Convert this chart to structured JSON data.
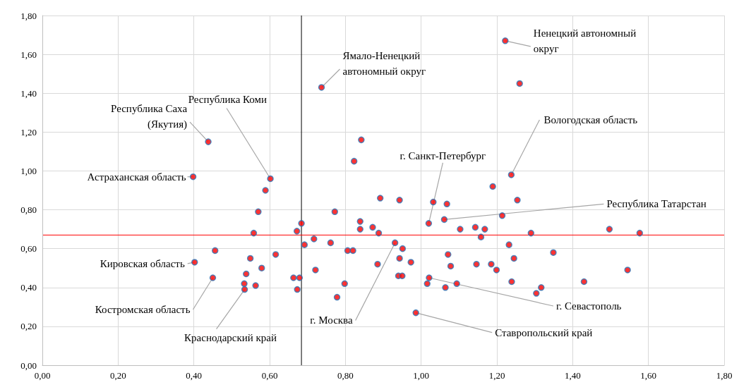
{
  "chart_data": {
    "type": "scatter",
    "marker": "circle",
    "grid": true,
    "xlim": [
      0,
      1.8
    ],
    "ylim": [
      0,
      1.8
    ],
    "xticks": [
      {
        "value": 0,
        "label": "0,00"
      },
      {
        "value": 0.2,
        "label": "0,20"
      },
      {
        "value": 0.4,
        "label": "0,40"
      },
      {
        "value": 0.6,
        "label": "0,60"
      },
      {
        "value": 0.8,
        "label": "0,80"
      },
      {
        "value": 1,
        "label": "1,00"
      },
      {
        "value": 1.2,
        "label": "1,20"
      },
      {
        "value": 1.4,
        "label": "1,40"
      },
      {
        "value": 1.6,
        "label": "1,60"
      },
      {
        "value": 1.8,
        "label": "1,80"
      }
    ],
    "yticks": [
      {
        "value": 0,
        "label": "0,00"
      },
      {
        "value": 0.2,
        "label": "0,20"
      },
      {
        "value": 0.4,
        "label": "0,40"
      },
      {
        "value": 0.6,
        "label": "0,60"
      },
      {
        "value": 0.8,
        "label": "0,80"
      },
      {
        "value": 1,
        "label": "1,00"
      },
      {
        "value": 1.2,
        "label": "1,20"
      },
      {
        "value": 1.4,
        "label": "1,40"
      },
      {
        "value": 1.6,
        "label": "1,60"
      },
      {
        "value": 1.8,
        "label": "1,80"
      }
    ],
    "ref_lines": [
      {
        "axis": "x",
        "value": 0.684,
        "color": "#000000"
      },
      {
        "axis": "y",
        "value": 0.67,
        "color": "#ff0000"
      }
    ],
    "series": [
      {
        "color": "#ff0000",
        "x": [
          0.737,
          0.438,
          0.842,
          0.823,
          0.398,
          0.602,
          0.589,
          0.57,
          0.772,
          0.839,
          0.839,
          0.684,
          0.672,
          0.558,
          0.717,
          0.692,
          0.761,
          0.806,
          0.82,
          0.456,
          0.402,
          0.549,
          0.616,
          0.579,
          0.538,
          0.45,
          0.721,
          0.533,
          0.563,
          0.534,
          0.663,
          0.679,
          0.673,
          0.798,
          0.778,
          1.222,
          1.26,
          1.238,
          1.189,
          0.892,
          0.943,
          1.032,
          1.068,
          1.254,
          1.214,
          1.061,
          1.02,
          0.872,
          0.888,
          1.103,
          1.143,
          1.168,
          1.158,
          1.29,
          0.931,
          0.951,
          1.232,
          0.943,
          0.973,
          0.885,
          1.071,
          1.078,
          1.146,
          1.185,
          1.199,
          1.245,
          0.94,
          0.95,
          1.021,
          1.016,
          1.064,
          1.094,
          1.239,
          1.304,
          1.317,
          0.986,
          1.497,
          1.577,
          1.349,
          1.545,
          1.43
        ],
        "values": [
          1.43,
          1.15,
          1.16,
          1.05,
          0.97,
          0.96,
          0.9,
          0.79,
          0.79,
          0.74,
          0.7,
          0.73,
          0.69,
          0.68,
          0.65,
          0.62,
          0.63,
          0.59,
          0.59,
          0.59,
          0.53,
          0.55,
          0.57,
          0.5,
          0.47,
          0.45,
          0.49,
          0.42,
          0.41,
          0.39,
          0.45,
          0.45,
          0.39,
          0.42,
          0.35,
          1.67,
          1.45,
          0.98,
          0.92,
          0.86,
          0.85,
          0.84,
          0.83,
          0.85,
          0.77,
          0.75,
          0.73,
          0.71,
          0.68,
          0.7,
          0.71,
          0.7,
          0.66,
          0.68,
          0.63,
          0.6,
          0.62,
          0.55,
          0.53,
          0.52,
          0.57,
          0.51,
          0.52,
          0.52,
          0.49,
          0.55,
          0.46,
          0.46,
          0.45,
          0.42,
          0.4,
          0.42,
          0.43,
          0.37,
          0.4,
          0.27,
          0.7,
          0.68,
          0.58,
          0.49,
          0.43
        ]
      }
    ],
    "annotations": [
      {
        "text": "Ненецкий автономный\nокруг",
        "x": 1.222,
        "y": 1.67
      },
      {
        "text": "Ямало-Ненецкий\nавтономный округ",
        "x": 0.737,
        "y": 1.43
      },
      {
        "text": "Республика Саха\n(Якутия)",
        "x": 0.438,
        "y": 1.15
      },
      {
        "text": "Республика Коми",
        "x": 0.602,
        "y": 0.96
      },
      {
        "text": "Вологодская область",
        "x": 1.238,
        "y": 0.98
      },
      {
        "text": "г. Санкт-Петербург",
        "x": 1.02,
        "y": 0.73
      },
      {
        "text": "Астраханская область",
        "x": 0.398,
        "y": 0.97
      },
      {
        "text": "Республика Татарстан",
        "x": 1.061,
        "y": 0.75
      },
      {
        "text": "Кировская область",
        "x": 0.402,
        "y": 0.53
      },
      {
        "text": "Костромская область",
        "x": 0.45,
        "y": 0.45
      },
      {
        "text": "Краснодарский край",
        "x": 0.534,
        "y": 0.39
      },
      {
        "text": "г. Москва",
        "x": 0.931,
        "y": 0.63
      },
      {
        "text": "г. Севастополь",
        "x": 1.021,
        "y": 0.45
      },
      {
        "text": "Ставропольский край",
        "x": 0.986,
        "y": 0.27
      }
    ]
  }
}
